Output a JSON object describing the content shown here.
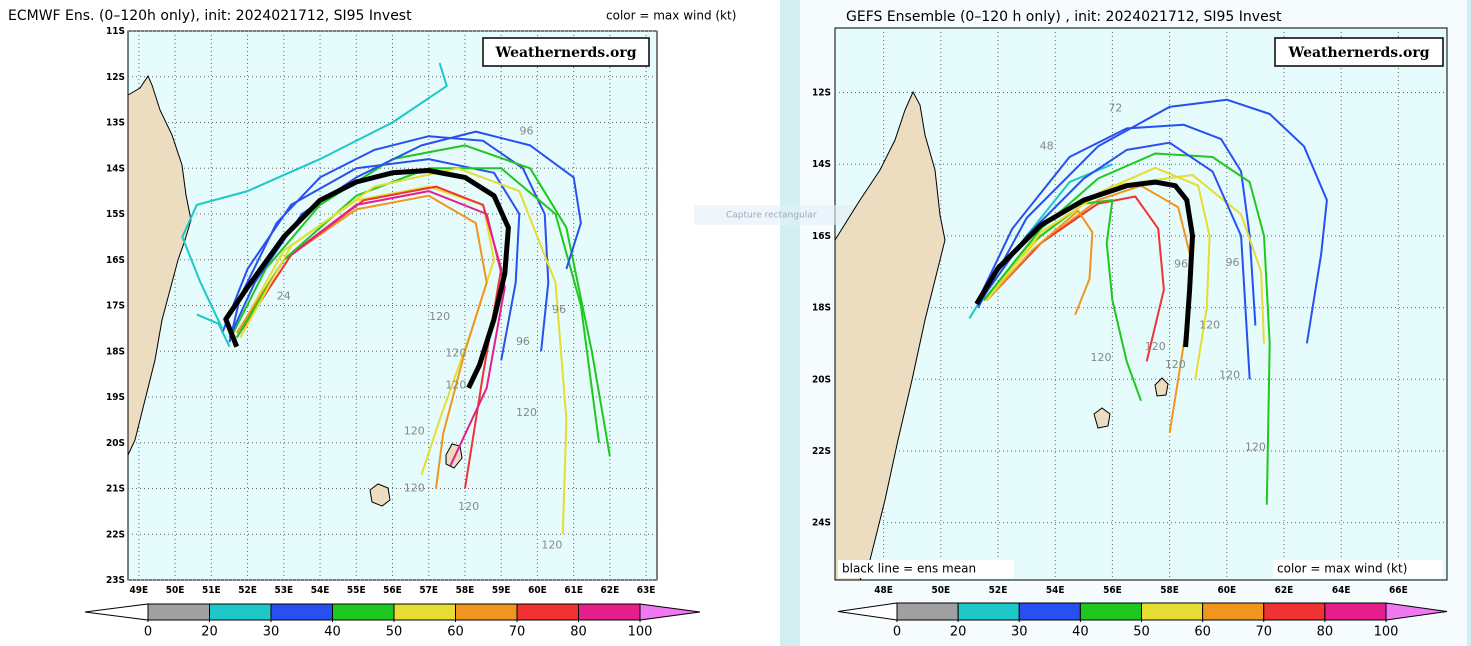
{
  "overlay_hint": "Capture rectangular",
  "colorbar": {
    "ticks": [
      0,
      20,
      30,
      40,
      50,
      60,
      70,
      80,
      100
    ],
    "colors": [
      "#ffffff",
      "#a0a0a0",
      "#1ec8c8",
      "#2850f0",
      "#1ec81e",
      "#e6dc32",
      "#f0961e",
      "#f03232",
      "#e61e8c",
      "#f078f0"
    ]
  },
  "panels": [
    {
      "title": "ECMWF Ens. (0–120h only), init: 2024021712, SI95 Invest",
      "color_note": "color = max wind (kt)",
      "watermark": "Weathernerds.org",
      "extent": {
        "lon": [
          48.7,
          63.3
        ],
        "lat": [
          -11,
          -23
        ]
      },
      "lat_ticks": [
        {
          "value": -11,
          "label": "11S"
        },
        {
          "value": -12,
          "label": "12S"
        },
        {
          "value": -13,
          "label": "13S"
        },
        {
          "value": -14,
          "label": "14S"
        },
        {
          "value": -15,
          "label": "15S"
        },
        {
          "value": -16,
          "label": "16S"
        },
        {
          "value": -17,
          "label": "17S"
        },
        {
          "value": -18,
          "label": "18S"
        },
        {
          "value": -19,
          "label": "19S"
        },
        {
          "value": -20,
          "label": "20S"
        },
        {
          "value": -21,
          "label": "21S"
        },
        {
          "value": -22,
          "label": "22S"
        },
        {
          "value": -23,
          "label": "23S"
        }
      ],
      "lon_ticks": [
        {
          "value": 49,
          "label": "49E"
        },
        {
          "value": 50,
          "label": "50E"
        },
        {
          "value": 51,
          "label": "51E"
        },
        {
          "value": 52,
          "label": "52E"
        },
        {
          "value": 53,
          "label": "53E"
        },
        {
          "value": 54,
          "label": "54E"
        },
        {
          "value": 55,
          "label": "55E"
        },
        {
          "value": 56,
          "label": "56E"
        },
        {
          "value": 57,
          "label": "57E"
        },
        {
          "value": 58,
          "label": "58E"
        },
        {
          "value": 59,
          "label": "59E"
        },
        {
          "value": 60,
          "label": "60E"
        },
        {
          "value": 61,
          "label": "61E"
        },
        {
          "value": 62,
          "label": "62E"
        },
        {
          "value": 63,
          "label": "63E"
        }
      ],
      "tracks": [
        {
          "max_wind": 35,
          "lon": [
            51.5,
            51.8,
            52.8,
            54,
            55.5,
            57,
            58.5,
            59.6,
            60.2,
            60.3,
            60.1
          ],
          "lat": [
            -17.8,
            -16.8,
            -15.2,
            -14.2,
            -13.6,
            -13.3,
            -13.4,
            -14,
            -15,
            -16.5,
            -18
          ]
        },
        {
          "max_wind": 38,
          "lon": [
            51.3,
            52,
            53.2,
            55,
            57,
            58.8,
            59.5,
            59.4,
            59
          ],
          "lat": [
            -17.6,
            -16.2,
            -14.8,
            -14,
            -13.8,
            -14.1,
            -15,
            -16.5,
            -18.2
          ]
        },
        {
          "max_wind": 28,
          "lon": [
            51.3,
            50.7,
            50.2,
            50.6,
            52,
            54,
            56,
            57.5,
            57.3
          ],
          "lat": [
            -17.5,
            -16.5,
            -15.5,
            -14.8,
            -14.5,
            -13.8,
            -13,
            -12.2,
            -11.7
          ]
        },
        {
          "max_wind": 25,
          "lon": [
            51.5,
            51.2,
            50.6
          ],
          "lat": [
            -17.9,
            -17.4,
            -17.2
          ]
        },
        {
          "max_wind": 45,
          "lon": [
            51.6,
            52.5,
            54,
            56,
            58,
            59.8,
            60.8,
            61.5,
            62
          ],
          "lat": [
            -17.6,
            -16.2,
            -14.8,
            -13.8,
            -13.5,
            -14,
            -15.3,
            -18,
            -20.3
          ]
        },
        {
          "max_wind": 55,
          "lon": [
            51.8,
            53,
            55,
            57,
            58.5,
            58.8,
            58.2,
            57.3,
            56.8
          ],
          "lat": [
            -17.5,
            -15.8,
            -14.7,
            -14.4,
            -14.8,
            -16,
            -17.5,
            -19.5,
            -20.7
          ]
        },
        {
          "max_wind": 65,
          "lon": [
            51.7,
            53,
            55,
            57,
            58.3,
            58.6,
            58,
            57.4,
            57.2
          ],
          "lat": [
            -17.6,
            -16,
            -14.9,
            -14.6,
            -15.2,
            -16.5,
            -18,
            -19.8,
            -21
          ]
        },
        {
          "max_wind": 75,
          "lon": [
            51.7,
            53.2,
            55.2,
            57.2,
            58.5,
            59,
            58.5,
            58
          ],
          "lat": [
            -17.7,
            -15.9,
            -14.7,
            -14.4,
            -14.8,
            -16.2,
            -18.5,
            -21
          ]
        },
        {
          "max_wind": 85,
          "lon": [
            51.7,
            53,
            55,
            57,
            58.6,
            59.1,
            58.6,
            57.6
          ],
          "lat": [
            -17.7,
            -16,
            -14.8,
            -14.5,
            -15,
            -16.6,
            -18.8,
            -20.5
          ]
        },
        {
          "max_wind": 45,
          "lon": [
            51.7,
            53,
            55,
            57,
            59,
            60.5,
            61.2,
            61.7
          ],
          "lat": [
            -17.7,
            -16,
            -14.6,
            -14,
            -14,
            -15,
            -17,
            -20
          ]
        },
        {
          "max_wind": 55,
          "lon": [
            51.8,
            53.2,
            55.5,
            57.8,
            59.5,
            60.5,
            60.8,
            60.7
          ],
          "lat": [
            -17.7,
            -15.7,
            -14.4,
            -14,
            -14.5,
            -16.5,
            -19.5,
            -22
          ]
        },
        {
          "max_wind": 35,
          "lon": [
            51.5,
            52.2,
            53.5,
            55,
            56.8,
            58.3,
            59.8,
            61,
            61.2,
            60.8
          ],
          "lat": [
            -17.7,
            -16.5,
            -15,
            -14.2,
            -13.5,
            -13.2,
            -13.5,
            -14.2,
            -15.2,
            -16.2
          ]
        }
      ],
      "mean_track": {
        "lon": [
          51.7,
          51.4,
          52,
          53,
          54,
          55,
          56,
          57,
          58,
          58.8,
          59.2,
          59.1,
          58.8,
          58.4,
          58.1
        ],
        "lat": [
          -17.9,
          -17.3,
          -16.6,
          -15.5,
          -14.7,
          -14.3,
          -14.1,
          -14.05,
          -14.2,
          -14.6,
          -15.3,
          -16.3,
          -17.3,
          -18.3,
          -18.8
        ]
      },
      "track_labels": [
        {
          "text": "96",
          "lon": 59.7,
          "lat": -13.2
        },
        {
          "text": "24",
          "lon": 53.0,
          "lat": -16.8
        },
        {
          "text": "120",
          "lon": 57.3,
          "lat": -17.25
        },
        {
          "text": "120",
          "lon": 57.75,
          "lat": -18.05
        },
        {
          "text": "120",
          "lon": 57.75,
          "lat": -18.75
        },
        {
          "text": "120",
          "lon": 56.6,
          "lat": -19.75
        },
        {
          "text": "120",
          "lon": 56.6,
          "lat": -21
        },
        {
          "text": "120",
          "lon": 58.1,
          "lat": -21.4
        },
        {
          "text": "120",
          "lon": 60.4,
          "lat": -22.25
        },
        {
          "text": "120",
          "lon": 59.7,
          "lat": -19.35
        },
        {
          "text": "96",
          "lon": 60.6,
          "lat": -17.1
        },
        {
          "text": "96",
          "lon": 59.6,
          "lat": -17.8
        }
      ]
    },
    {
      "title": "GEFS Ensemble (0–120 h only) , init: 2024021712, SI95 Invest",
      "color_note": "color = max wind (kt)",
      "mean_note": "black line = ens mean",
      "watermark": "Weathernerds.org",
      "extent": {
        "lon": [
          46.3,
          67.7
        ],
        "lat": [
          -10.2,
          -25.6
        ]
      },
      "lat_ticks": [
        {
          "value": -12,
          "label": "12S"
        },
        {
          "value": -14,
          "label": "14S"
        },
        {
          "value": -16,
          "label": "16S"
        },
        {
          "value": -18,
          "label": "18S"
        },
        {
          "value": -20,
          "label": "20S"
        },
        {
          "value": -22,
          "label": "22S"
        },
        {
          "value": -24,
          "label": "24S"
        }
      ],
      "lon_ticks": [
        {
          "value": 48,
          "label": "48E"
        },
        {
          "value": 50,
          "label": "50E"
        },
        {
          "value": 52,
          "label": "52E"
        },
        {
          "value": 54,
          "label": "54E"
        },
        {
          "value": 56,
          "label": "56E"
        },
        {
          "value": 58,
          "label": "58E"
        },
        {
          "value": 60,
          "label": "60E"
        },
        {
          "value": 62,
          "label": "62E"
        },
        {
          "value": 64,
          "label": "64E"
        },
        {
          "value": 66,
          "label": "66E"
        }
      ],
      "tracks": [
        {
          "max_wind": 38,
          "lon": [
            51.3,
            52.5,
            54.5,
            56.5,
            58.5,
            59.8,
            60.5,
            60.8,
            61
          ],
          "lat": [
            -17.8,
            -15.8,
            -13.8,
            -13,
            -12.9,
            -13.3,
            -14.2,
            -16,
            -18.5
          ]
        },
        {
          "max_wind": 35,
          "lon": [
            51.3,
            53,
            55.5,
            58,
            60,
            61.5,
            62.7,
            63.5,
            63.3,
            62.8
          ],
          "lat": [
            -18,
            -15.5,
            -13.5,
            -12.4,
            -12.2,
            -12.6,
            -13.5,
            -15,
            -16.5,
            -19
          ]
        },
        {
          "max_wind": 25,
          "lon": [
            51,
            52,
            53.5,
            54.5,
            56
          ],
          "lat": [
            -18.3,
            -17,
            -15.5,
            -14.5,
            -14
          ]
        },
        {
          "max_wind": 45,
          "lon": [
            51.5,
            53.5,
            55.5,
            57.5,
            59.5,
            60.8,
            61.3,
            61.5,
            61.4
          ],
          "lat": [
            -17.8,
            -15.8,
            -14.4,
            -13.7,
            -13.8,
            -14.5,
            -16,
            -19,
            -23.5
          ]
        },
        {
          "max_wind": 55,
          "lon": [
            51.5,
            53.5,
            55.5,
            57.5,
            59,
            59.4,
            59.3,
            58.9
          ],
          "lat": [
            -17.8,
            -16,
            -14.8,
            -14.1,
            -14.6,
            -16,
            -18,
            -20
          ]
        },
        {
          "max_wind": 65,
          "lon": [
            51.6,
            53.5,
            55.5,
            57,
            58.3,
            58.8,
            58.5,
            58
          ],
          "lat": [
            -17.8,
            -16.2,
            -15,
            -14.6,
            -15.2,
            -16.8,
            -19,
            -21.5
          ]
        },
        {
          "max_wind": 75,
          "lon": [
            51.6,
            53.5,
            55.5,
            56.8,
            57.6,
            57.8,
            57.2
          ],
          "lat": [
            -17.8,
            -16.2,
            -15.1,
            -14.9,
            -15.8,
            -17.5,
            -19.5
          ]
        },
        {
          "max_wind": 45,
          "lon": [
            51.5,
            53,
            55,
            56,
            55.8,
            56,
            56.5,
            57
          ],
          "lat": [
            -17.8,
            -16.3,
            -15.1,
            -15,
            -16.2,
            -17.8,
            -19.5,
            -20.6
          ]
        },
        {
          "max_wind": 65,
          "lon": [
            51.6,
            53.2,
            54.8,
            55.3,
            55.2,
            54.7
          ],
          "lat": [
            -17.8,
            -16.4,
            -15.3,
            -15.9,
            -17.2,
            -18.2
          ]
        },
        {
          "max_wind": 55,
          "lon": [
            51.6,
            53.5,
            56,
            58.8,
            60.5,
            61.2,
            61.3
          ],
          "lat": [
            -17.8,
            -15.9,
            -14.6,
            -14.3,
            -15.4,
            -17,
            -19
          ]
        },
        {
          "max_wind": 38,
          "lon": [
            51.3,
            53,
            55,
            56.5,
            58,
            59.5,
            60.5,
            60.8
          ],
          "lat": [
            -17.9,
            -16,
            -14.4,
            -13.6,
            -13.4,
            -14.2,
            -16,
            -20
          ]
        }
      ],
      "mean_track": {
        "lon": [
          51.25,
          52,
          53.5,
          55,
          56.5,
          57.5,
          58.2,
          58.6,
          58.8,
          58.7,
          58.56
        ],
        "lat": [
          -17.9,
          -16.9,
          -15.7,
          -15,
          -14.6,
          -14.5,
          -14.6,
          -15,
          -16,
          -17.5,
          -19.1
        ]
      },
      "track_labels": [
        {
          "text": "72",
          "lon": 56.1,
          "lat": -12.45
        },
        {
          "text": "48",
          "lon": 53.7,
          "lat": -13.5
        },
        {
          "text": "120",
          "lon": 55.6,
          "lat": -19.4
        },
        {
          "text": "120",
          "lon": 57.5,
          "lat": -19.1
        },
        {
          "text": "120",
          "lon": 58.2,
          "lat": -19.6
        },
        {
          "text": "120",
          "lon": 60.1,
          "lat": -19.9
        },
        {
          "text": "120",
          "lon": 61,
          "lat": -21.9
        },
        {
          "text": "96",
          "lon": 60.2,
          "lat": -16.75
        },
        {
          "text": "96",
          "lon": 58.4,
          "lat": -16.8
        },
        {
          "text": "120",
          "lon": 59.4,
          "lat": -18.5
        }
      ]
    }
  ]
}
